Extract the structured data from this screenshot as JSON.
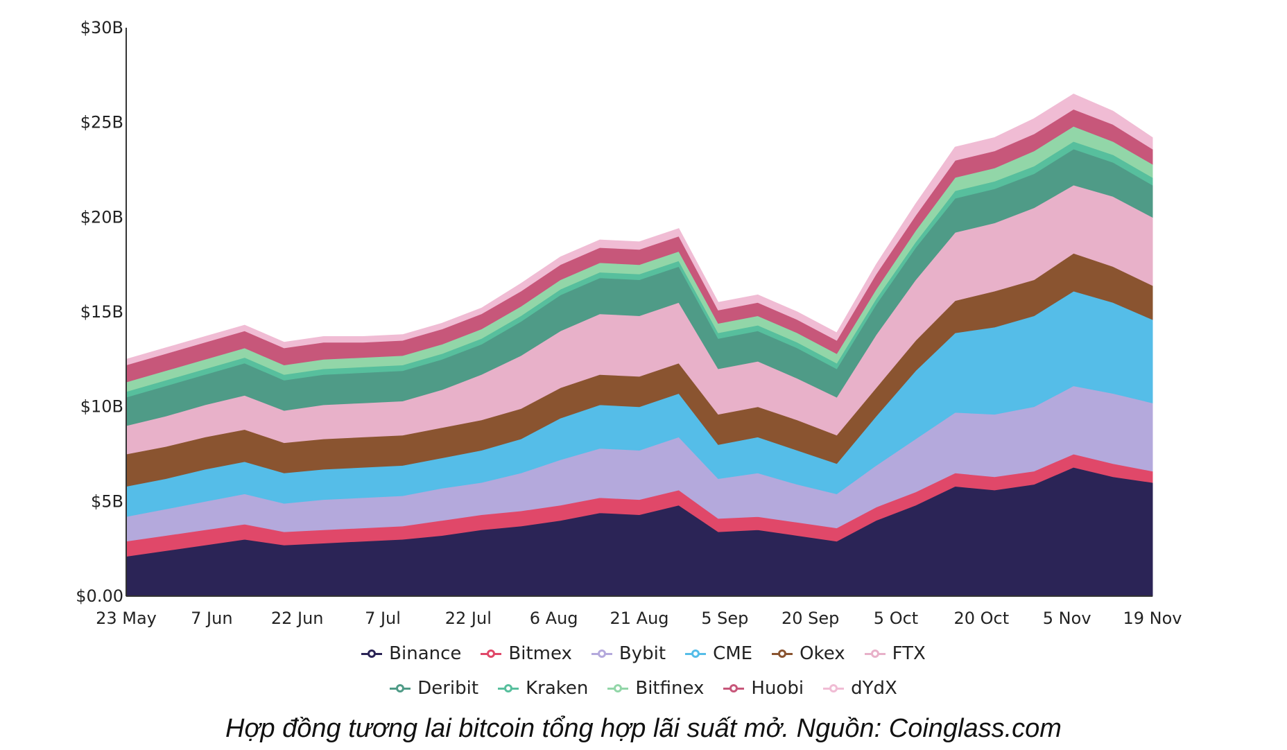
{
  "caption": "Hợp đồng tương lai bitcoin tổng hợp lãi suất mở. Nguồn: Coinglass.com",
  "chart_data": {
    "type": "area",
    "stacked": true,
    "title": "",
    "xlabel": "",
    "ylabel": "",
    "ylim": [
      0,
      30
    ],
    "y_unit": "B USD",
    "y_ticks": [
      {
        "value": 0,
        "label": "$0.00"
      },
      {
        "value": 5,
        "label": "$5B"
      },
      {
        "value": 10,
        "label": "$10B"
      },
      {
        "value": 15,
        "label": "$15B"
      },
      {
        "value": 20,
        "label": "$20B"
      },
      {
        "value": 25,
        "label": "$25B"
      },
      {
        "value": 30,
        "label": "$30B"
      }
    ],
    "x_ticks": [
      "23 May",
      "7 Jun",
      "22 Jun",
      "7 Jul",
      "22 Jul",
      "6 Aug",
      "21 Aug",
      "5 Sep",
      "20 Sep",
      "5 Oct",
      "20 Oct",
      "5 Nov",
      "19 Nov"
    ],
    "x": [
      "23 May",
      "30 May",
      "7 Jun",
      "14 Jun",
      "22 Jun",
      "29 Jun",
      "7 Jul",
      "14 Jul",
      "22 Jul",
      "29 Jul",
      "6 Aug",
      "13 Aug",
      "21 Aug",
      "28 Aug",
      "4 Sep",
      "6 Sep",
      "12 Sep",
      "20 Sep",
      "27 Sep",
      "5 Oct",
      "12 Oct",
      "20 Oct",
      "27 Oct",
      "5 Nov",
      "9 Nov",
      "14 Nov",
      "19 Nov"
    ],
    "series": [
      {
        "name": "Binance",
        "color": "#2b2456",
        "values": [
          2.1,
          2.4,
          2.7,
          3.0,
          2.7,
          2.8,
          2.9,
          3.0,
          3.2,
          3.5,
          3.7,
          4.0,
          4.4,
          4.3,
          4.8,
          3.4,
          3.5,
          3.2,
          2.9,
          4.0,
          4.8,
          5.8,
          5.6,
          5.9,
          6.8,
          6.3,
          6.0
        ]
      },
      {
        "name": "Bitmex",
        "color": "#e04869",
        "values": [
          0.8,
          0.8,
          0.8,
          0.8,
          0.7,
          0.7,
          0.7,
          0.7,
          0.8,
          0.8,
          0.8,
          0.8,
          0.8,
          0.8,
          0.8,
          0.7,
          0.7,
          0.7,
          0.7,
          0.7,
          0.7,
          0.7,
          0.7,
          0.7,
          0.7,
          0.7,
          0.6
        ]
      },
      {
        "name": "Bybit",
        "color": "#b4a9dc",
        "values": [
          1.3,
          1.4,
          1.5,
          1.6,
          1.5,
          1.6,
          1.6,
          1.6,
          1.7,
          1.7,
          2.0,
          2.4,
          2.6,
          2.6,
          2.8,
          2.1,
          2.3,
          2.0,
          1.8,
          2.2,
          2.8,
          3.2,
          3.3,
          3.4,
          3.6,
          3.7,
          3.6
        ]
      },
      {
        "name": "CME",
        "color": "#55bde8",
        "values": [
          1.6,
          1.6,
          1.7,
          1.7,
          1.6,
          1.6,
          1.6,
          1.6,
          1.6,
          1.7,
          1.8,
          2.2,
          2.3,
          2.3,
          2.3,
          1.8,
          1.9,
          1.8,
          1.6,
          2.6,
          3.6,
          4.2,
          4.6,
          4.8,
          5.0,
          4.8,
          4.4
        ]
      },
      {
        "name": "Okex",
        "color": "#8a5430",
        "values": [
          1.7,
          1.7,
          1.7,
          1.7,
          1.6,
          1.6,
          1.6,
          1.6,
          1.6,
          1.6,
          1.6,
          1.6,
          1.6,
          1.6,
          1.6,
          1.6,
          1.6,
          1.6,
          1.5,
          1.5,
          1.6,
          1.7,
          1.9,
          1.9,
          2.0,
          1.9,
          1.8
        ]
      },
      {
        "name": "FTX",
        "color": "#e8b1c9",
        "values": [
          1.5,
          1.6,
          1.7,
          1.8,
          1.7,
          1.8,
          1.8,
          1.8,
          2.0,
          2.4,
          2.8,
          3.0,
          3.2,
          3.2,
          3.2,
          2.4,
          2.4,
          2.2,
          2.0,
          2.8,
          3.2,
          3.6,
          3.6,
          3.8,
          3.6,
          3.7,
          3.6
        ]
      },
      {
        "name": "Deribit",
        "color": "#4f9b87",
        "values": [
          1.5,
          1.6,
          1.6,
          1.7,
          1.6,
          1.6,
          1.6,
          1.6,
          1.6,
          1.6,
          1.8,
          1.9,
          1.9,
          1.9,
          1.9,
          1.6,
          1.6,
          1.6,
          1.5,
          1.6,
          1.7,
          1.8,
          1.8,
          1.8,
          1.9,
          1.8,
          1.7
        ]
      },
      {
        "name": "Kraken",
        "color": "#57bf9d",
        "values": [
          0.3,
          0.3,
          0.3,
          0.3,
          0.3,
          0.3,
          0.3,
          0.3,
          0.3,
          0.3,
          0.3,
          0.3,
          0.3,
          0.3,
          0.3,
          0.3,
          0.3,
          0.3,
          0.3,
          0.3,
          0.3,
          0.4,
          0.4,
          0.4,
          0.4,
          0.4,
          0.4
        ]
      },
      {
        "name": "Bitfinex",
        "color": "#92d6a8",
        "values": [
          0.5,
          0.5,
          0.5,
          0.5,
          0.5,
          0.5,
          0.5,
          0.5,
          0.5,
          0.5,
          0.5,
          0.5,
          0.5,
          0.5,
          0.5,
          0.5,
          0.5,
          0.5,
          0.5,
          0.5,
          0.6,
          0.7,
          0.7,
          0.8,
          0.8,
          0.7,
          0.7
        ]
      },
      {
        "name": "Huobi",
        "color": "#c7577a",
        "values": [
          0.9,
          0.9,
          0.9,
          0.9,
          0.9,
          0.9,
          0.8,
          0.8,
          0.8,
          0.8,
          0.8,
          0.8,
          0.8,
          0.8,
          0.8,
          0.7,
          0.7,
          0.7,
          0.7,
          0.8,
          0.8,
          0.9,
          0.9,
          0.9,
          0.9,
          0.9,
          0.8
        ]
      },
      {
        "name": "dYdX",
        "color": "#f0bcd4",
        "values": [
          0.3,
          0.3,
          0.3,
          0.3,
          0.3,
          0.3,
          0.3,
          0.3,
          0.3,
          0.3,
          0.4,
          0.4,
          0.4,
          0.4,
          0.4,
          0.4,
          0.4,
          0.4,
          0.4,
          0.5,
          0.6,
          0.7,
          0.7,
          0.8,
          0.8,
          0.7,
          0.6
        ]
      }
    ],
    "annotation": {
      "type": "ellipse",
      "at": "5 Sep",
      "color": "#ee8a3a"
    },
    "legend_position": "bottom",
    "grid": false
  }
}
